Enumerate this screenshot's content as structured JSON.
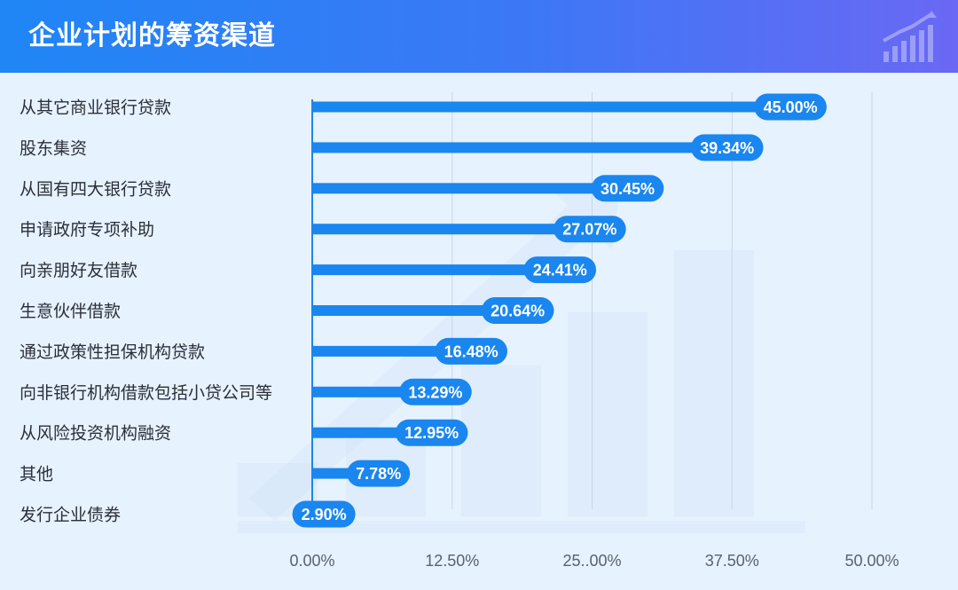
{
  "header": {
    "title": "企业计划的筹资渠道",
    "icon": "rising-chart-icon"
  },
  "chart_data": {
    "type": "bar",
    "orientation": "horizontal",
    "title": "企业计划的筹资渠道",
    "categories": [
      "从其它商业银行贷款",
      "股东集资",
      "从国有四大银行贷款",
      "申请政府专项补助",
      "向亲朋好友借款",
      "生意伙伴借款",
      "通过政策性担保机构贷款",
      "向非银行机构借款包括小贷公司等",
      "从风险投资机构融资",
      "其他",
      "发行企业债券"
    ],
    "values": [
      45.0,
      39.34,
      30.45,
      27.07,
      24.41,
      20.64,
      16.48,
      13.29,
      12.95,
      7.78,
      2.9
    ],
    "value_labels": [
      "45.00%",
      "39.34%",
      "30.45%",
      "27.07%",
      "24.41%",
      "20.64%",
      "16.48%",
      "13.29%",
      "12.95%",
      "7.78%",
      "2.90%"
    ],
    "xlim": [
      0,
      50
    ],
    "xticks": [
      0,
      12.5,
      25,
      37.5,
      50
    ],
    "xtick_labels": [
      "0.00%",
      "12.50%",
      "25..00%",
      "37.50%",
      "50.00%"
    ],
    "xlabel": "",
    "ylabel": "",
    "grid": true,
    "legend": "none",
    "colors": {
      "bar": "#1a86ef",
      "label_pill": "#1a86ef",
      "grid": "#c9d6e6",
      "axis": "#1a86ef"
    }
  }
}
